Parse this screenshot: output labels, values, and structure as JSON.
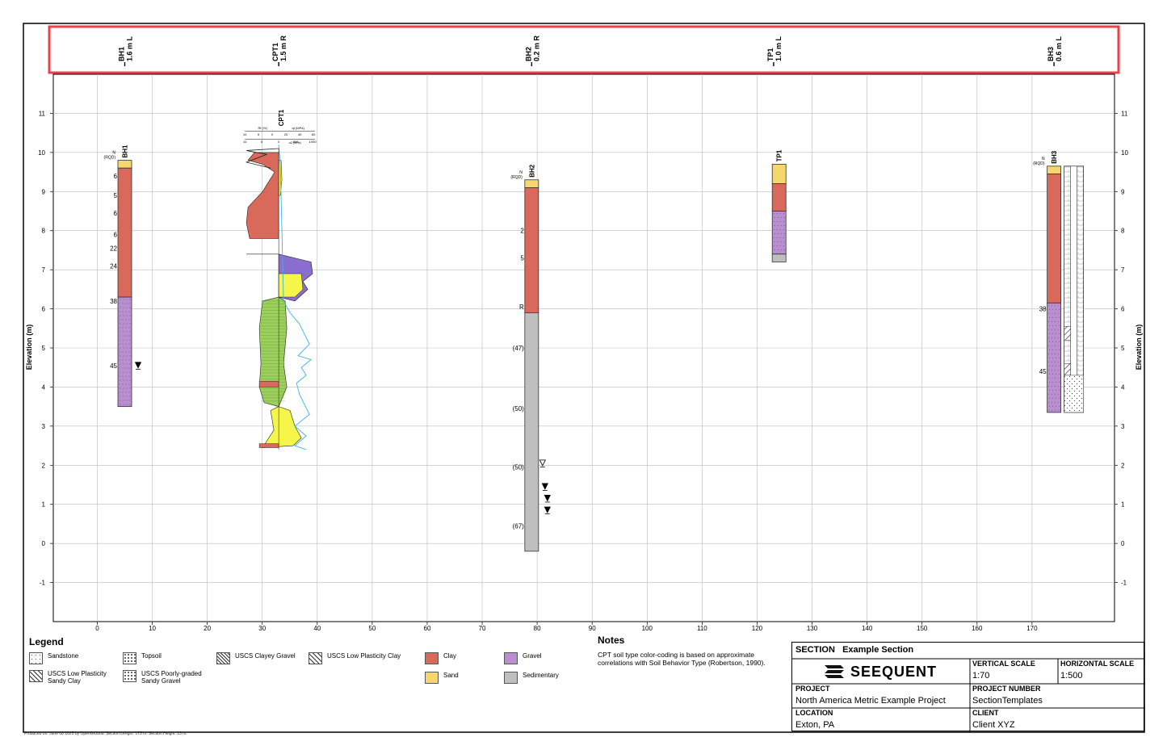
{
  "colors": {
    "clay": "#d9695b",
    "sand": "#f5d76e",
    "gravel": "#b98fd0",
    "sedimentary": "#bfbfbf",
    "cpt_green": "#9bd05c",
    "cpt_yellow": "#f5f54a",
    "cpt_purple": "#8a6fd1",
    "cpt_blue": "#3bb4e0",
    "highlight": "#e8424a",
    "grid": "#bbbbbb"
  },
  "top_labels": [
    {
      "name": "BH1",
      "offset": "1.6 m L",
      "x": 5
    },
    {
      "name": "CPT1",
      "offset": "1.5 m R",
      "x": 33
    },
    {
      "name": "BH2",
      "offset": "0.2 m R",
      "x": 79
    },
    {
      "name": "TP1",
      "offset": "1.0 m L",
      "x": 123
    },
    {
      "name": "BH3",
      "offset": "0.6 m L",
      "x": 174
    }
  ],
  "axes": {
    "elevation_label": "Elevation (m)",
    "y_ticks": [
      11,
      10,
      9,
      8,
      7,
      6,
      5,
      4,
      3,
      2,
      1,
      0,
      -1
    ],
    "x_ticks": [
      0,
      10,
      20,
      30,
      40,
      50,
      60,
      70,
      80,
      90,
      100,
      110,
      120,
      130,
      140,
      150,
      160,
      170
    ],
    "ylim": [
      -2,
      12
    ],
    "xlim": [
      -8,
      185
    ]
  },
  "boreholes": [
    {
      "name": "BH1",
      "x": 5,
      "top": 9.8,
      "nlabel": "N",
      "rqdlabel": "(RQD)",
      "layers": [
        {
          "top": 9.8,
          "bottom": 9.6,
          "material": "sand"
        },
        {
          "top": 9.6,
          "bottom": 6.3,
          "material": "clay"
        },
        {
          "top": 6.3,
          "bottom": 3.5,
          "material": "gravel"
        }
      ],
      "nvalues": [
        {
          "elev": 9.4,
          "text": "6"
        },
        {
          "elev": 8.9,
          "text": "5"
        },
        {
          "elev": 8.45,
          "text": "6"
        },
        {
          "elev": 7.9,
          "text": "6"
        },
        {
          "elev": 7.55,
          "text": "22"
        },
        {
          "elev": 7.1,
          "text": "24"
        },
        {
          "elev": 6.2,
          "text": "38"
        },
        {
          "elev": 4.55,
          "text": "45"
        }
      ],
      "water": [
        {
          "elev": 4.55,
          "filled": true
        }
      ]
    },
    {
      "name": "BH2",
      "x": 79,
      "top": 9.3,
      "nlabel": "N",
      "rqdlabel": "(RQD)",
      "layers": [
        {
          "top": 9.3,
          "bottom": 9.1,
          "material": "sand"
        },
        {
          "top": 9.1,
          "bottom": 5.9,
          "material": "clay"
        },
        {
          "top": 5.9,
          "bottom": -0.2,
          "material": "sedimentary"
        }
      ],
      "nvalues": [
        {
          "elev": 8.0,
          "text": "2"
        },
        {
          "elev": 7.3,
          "text": "5"
        },
        {
          "elev": 6.05,
          "text": "R"
        },
        {
          "elev": 5.0,
          "text": "(47)"
        },
        {
          "elev": 3.45,
          "text": "(50)"
        },
        {
          "elev": 1.95,
          "text": "(50)"
        },
        {
          "elev": 0.45,
          "text": "(67)"
        }
      ],
      "water": [
        {
          "elev": 2.05,
          "filled": false
        },
        {
          "elev": 1.45,
          "filled": true
        },
        {
          "elev": 1.15,
          "filled": true
        },
        {
          "elev": 0.85,
          "filled": true
        }
      ]
    },
    {
      "name": "TP1",
      "x": 124,
      "top": 9.7,
      "nlabel": "",
      "rqdlabel": "",
      "layers": [
        {
          "top": 9.7,
          "bottom": 9.2,
          "material": "sand"
        },
        {
          "top": 9.2,
          "bottom": 8.5,
          "material": "clay"
        },
        {
          "top": 8.5,
          "bottom": 7.4,
          "material": "gravel"
        },
        {
          "top": 7.4,
          "bottom": 7.2,
          "material": "sedimentary"
        }
      ],
      "nvalues": [],
      "water": []
    },
    {
      "name": "BH3",
      "x": 174,
      "top": 9.65,
      "nlabel": "N",
      "rqdlabel": "(RQD)",
      "layers": [
        {
          "top": 9.65,
          "bottom": 9.45,
          "material": "sand"
        },
        {
          "top": 9.45,
          "bottom": 6.15,
          "material": "clay"
        },
        {
          "top": 6.15,
          "bottom": 3.35,
          "material": "gravel"
        }
      ],
      "nvalues": [
        {
          "elev": 6.0,
          "text": "38"
        },
        {
          "elev": 4.4,
          "text": "45"
        }
      ],
      "water": [
        {
          "elev": 4.4,
          "filled": true
        }
      ]
    }
  ],
  "cpt": {
    "name": "CPT1",
    "x": 33,
    "header_ticks_top": [
      "10",
      "5",
      "0",
      "20",
      "40",
      "60"
    ],
    "header_ticks_bottom": [
      "10",
      "5",
      "0",
      "500",
      "1000"
    ],
    "header_label_left": "Rf (%)",
    "header_label_right": "qt (MPa)",
    "header_label_u2": "u2 (kPa)"
  },
  "legend": {
    "title": "Legend",
    "items": [
      {
        "label": "Sandstone",
        "pattern": "dots"
      },
      {
        "label": "Topsoil",
        "pattern": "topsoil"
      },
      {
        "label": "USCS Clayey Gravel",
        "pattern": "clayeygravel"
      },
      {
        "label": "USCS Low Plasticity Clay",
        "pattern": "hatch"
      },
      {
        "label": "Clay",
        "pattern": "clay"
      },
      {
        "label": "Gravel",
        "pattern": "gravel"
      },
      {
        "label": "USCS Low Plasticity Sandy Clay",
        "pattern": "hatchdots"
      },
      {
        "label": "USCS Poorly-graded Sandy Gravel",
        "pattern": "topsoil"
      },
      {
        "label": "Sand",
        "pattern": "sand"
      },
      {
        "label": "Sedimentary",
        "pattern": "sedimentary"
      }
    ]
  },
  "notes": {
    "title": "Notes",
    "text": "CPT soil type color-coding is based on approximate correlations with Soil Behavior Type (Robertson, 1990)."
  },
  "title_block": {
    "section_label": "SECTION",
    "section_value": "Example Section",
    "logo_text": "SEEQUENT",
    "vertical_scale_label": "VERTICAL SCALE",
    "vertical_scale_value": "1:70",
    "horizontal_scale_label": "HORIZONTAL SCALE",
    "horizontal_scale_value": "1:500",
    "project_label": "PROJECT",
    "project_value": "North America Metric Example Project",
    "project_number_label": "PROJECT NUMBER",
    "project_number_value": "SectionTemplates",
    "location_label": "LOCATION",
    "location_value": "Exton, PA",
    "client_label": "CLIENT",
    "client_value": "Client XYZ"
  },
  "footer": "Produced on: June 08 2025 by OpenGround. Section Length: 175 m. Section Height: 13 m."
}
